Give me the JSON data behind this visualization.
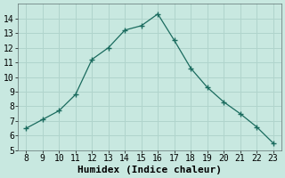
{
  "x": [
    8,
    9,
    10,
    11,
    12,
    13,
    14,
    15,
    16,
    17,
    18,
    19,
    20,
    21,
    22,
    23
  ],
  "y": [
    6.5,
    7.1,
    7.7,
    8.8,
    11.2,
    12.0,
    13.2,
    13.5,
    14.3,
    12.5,
    10.6,
    9.3,
    8.3,
    7.5,
    6.6,
    5.5
  ],
  "xlabel": "Humidex (Indice chaleur)",
  "xlim": [
    7.5,
    23.5
  ],
  "ylim": [
    5,
    15
  ],
  "yticks": [
    5,
    6,
    7,
    8,
    9,
    10,
    11,
    12,
    13,
    14
  ],
  "xticks": [
    8,
    9,
    10,
    11,
    12,
    13,
    14,
    15,
    16,
    17,
    18,
    19,
    20,
    21,
    22,
    23
  ],
  "line_color": "#1a6b5e",
  "marker": "+",
  "bg_color": "#c8e8e0",
  "grid_color": "#b0d4cc",
  "font_size_ticks": 7,
  "font_size_xlabel": 8
}
